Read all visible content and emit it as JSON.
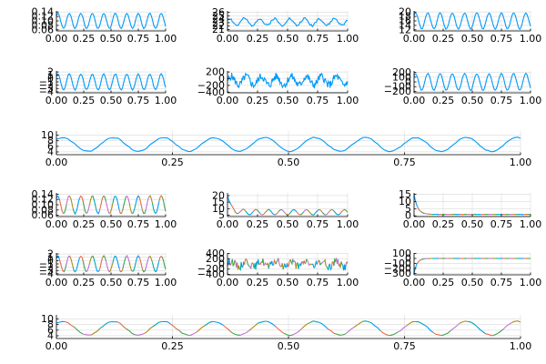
{
  "colors": {
    "series": [
      "#009AFA",
      "#E36F47",
      "#3EA44E",
      "#C371D2",
      "#AC8E18",
      "#00AAAE"
    ],
    "grid": "#d9d9d9",
    "axis": "#000000"
  },
  "chart_data": [
    {
      "type": "line",
      "row": 0,
      "col": 0,
      "span": 1,
      "xlim": [
        0,
        1
      ],
      "x_ticks": [
        "0.00",
        "0.25",
        "0.50",
        "0.75",
        "1.00"
      ],
      "ylim": [
        0.055,
        0.145
      ],
      "y_ticks": [
        "0.06",
        "0.08",
        "0.10",
        "0.12",
        "0.14"
      ],
      "grid": true,
      "legend": "none",
      "series": [
        {
          "shape": "sine",
          "base": 0.1,
          "amp": 0.034,
          "freq": 9.5,
          "noise": 0.003,
          "n": 100,
          "seed": 1
        }
      ]
    },
    {
      "type": "line",
      "row": 0,
      "col": 1,
      "span": 1,
      "xlim": [
        0,
        1
      ],
      "x_ticks": [
        "0.00",
        "0.25",
        "0.50",
        "0.75",
        "1.00"
      ],
      "ylim": [
        20.6,
        26.4
      ],
      "y_ticks": [
        "21",
        "22",
        "23",
        "24",
        "25",
        "26"
      ],
      "grid": true,
      "legend": "none",
      "series": [
        {
          "shape": "sine",
          "base": 23.2,
          "amp": 1.0,
          "freq": 8,
          "noise": 0.7,
          "n": 100,
          "seed": 2
        }
      ]
    },
    {
      "type": "line",
      "row": 0,
      "col": 2,
      "span": 1,
      "xlim": [
        0,
        1
      ],
      "x_ticks": [
        "0.00",
        "0.25",
        "0.50",
        "0.75",
        "1.00"
      ],
      "ylim": [
        11.5,
        20.5
      ],
      "y_ticks": [
        "12",
        "14",
        "16",
        "18",
        "20"
      ],
      "grid": true,
      "legend": "none",
      "series": [
        {
          "shape": "sine",
          "base": 16.0,
          "amp": 3.6,
          "freq": 9.5,
          "noise": 0.3,
          "n": 100,
          "seed": 3
        }
      ]
    },
    {
      "type": "line",
      "row": 1,
      "col": 0,
      "span": 1,
      "xlim": [
        0,
        1
      ],
      "x_ticks": [
        "0.00",
        "0.25",
        "0.50",
        "0.75",
        "1.00"
      ],
      "ylim": [
        -4.3,
        2.3
      ],
      "y_ticks": [
        "-4",
        "-3",
        "-2",
        "-1",
        "0",
        "1",
        "2"
      ],
      "grid": true,
      "legend": "none",
      "series": [
        {
          "shape": "sine",
          "base": -1.0,
          "amp": 2.4,
          "freq": 9.5,
          "noise": 0.25,
          "n": 100,
          "seed": 4
        }
      ]
    },
    {
      "type": "line",
      "row": 1,
      "col": 1,
      "span": 1,
      "xlim": [
        0,
        1
      ],
      "x_ticks": [
        "0.00",
        "0.25",
        "0.50",
        "0.75",
        "1.00"
      ],
      "ylim": [
        -420,
        230
      ],
      "y_ticks": [
        "-400",
        "-200",
        "0",
        "200"
      ],
      "grid": true,
      "legend": "none",
      "series": [
        {
          "shape": "noise",
          "base": -60,
          "amp": 130,
          "freq": 8,
          "noise": 110,
          "n": 200,
          "seed": 5
        }
      ]
    },
    {
      "type": "line",
      "row": 1,
      "col": 2,
      "span": 1,
      "xlim": [
        0,
        1
      ],
      "x_ticks": [
        "0.00",
        "0.25",
        "0.50",
        "0.75",
        "1.00"
      ],
      "ylim": [
        -230,
        230
      ],
      "y_ticks": [
        "-200",
        "-100",
        "0",
        "100",
        "200"
      ],
      "grid": true,
      "legend": "none",
      "series": [
        {
          "shape": "sine",
          "base": 0,
          "amp": 175,
          "freq": 9.5,
          "noise": 15,
          "n": 100,
          "seed": 6
        }
      ]
    },
    {
      "type": "line",
      "row": 2,
      "col": 0,
      "span": 3,
      "xlim": [
        0,
        1
      ],
      "x_ticks": [
        "0.00",
        "0.25",
        "0.50",
        "0.75",
        "1.00"
      ],
      "ylim": [
        3.0,
        11.5
      ],
      "y_ticks": [
        "4",
        "6",
        "8",
        "10"
      ],
      "grid": true,
      "legend": "none",
      "series": [
        {
          "shape": "sine",
          "base": 6.7,
          "amp": 2.5,
          "freq": 9.2,
          "noise": 0.35,
          "n": 160,
          "seed": 7
        }
      ]
    },
    {
      "type": "line",
      "row": 3,
      "col": 0,
      "span": 1,
      "xlim": [
        0,
        1
      ],
      "x_ticks": [
        "0.00",
        "0.25",
        "0.50",
        "0.75",
        "1.00"
      ],
      "ylim": [
        0.055,
        0.145
      ],
      "y_ticks": [
        "0.06",
        "0.08",
        "0.10",
        "0.12",
        "0.14"
      ],
      "grid": true,
      "legend": "none",
      "series": [
        {
          "shape": "sine",
          "base": 0.1,
          "amp": 0.034,
          "freq": 9.5,
          "noise": 0.003,
          "n": 100,
          "seed": 11,
          "segmented": true
        }
      ]
    },
    {
      "type": "line",
      "row": 3,
      "col": 1,
      "span": 1,
      "xlim": [
        0,
        1
      ],
      "x_ticks": [
        "0.00",
        "0.25",
        "0.50",
        "0.75",
        "1.00"
      ],
      "ylim": [
        4.0,
        22.0
      ],
      "y_ticks": [
        "5",
        "10",
        "15",
        "20"
      ],
      "grid": true,
      "legend": "none",
      "series": [
        {
          "shape": "decay_sine",
          "start": 20,
          "base": 7.3,
          "amp": 2.0,
          "freq": 9.5,
          "tau": 0.03,
          "noise": 0.25,
          "n": 100,
          "seed": 12,
          "segmented": true
        }
      ]
    },
    {
      "type": "line",
      "row": 3,
      "col": 2,
      "span": 1,
      "xlim": [
        0,
        1
      ],
      "x_ticks": [
        "0.00",
        "0.25",
        "0.50",
        "0.75",
        "1.00"
      ],
      "ylim": [
        -0.5,
        16.0
      ],
      "y_ticks": [
        "0",
        "5",
        "10",
        "15"
      ],
      "grid": true,
      "legend": "none",
      "series": [
        {
          "shape": "decay",
          "start": 15,
          "base": 1.0,
          "tau": 0.03,
          "noise": 0.05,
          "n": 100,
          "seed": 13,
          "segmented": true
        }
      ]
    },
    {
      "type": "line",
      "row": 4,
      "col": 0,
      "span": 1,
      "xlim": [
        0,
        1
      ],
      "x_ticks": [
        "0.00",
        "0.25",
        "0.50",
        "0.75",
        "1.00"
      ],
      "ylim": [
        -4.3,
        2.3
      ],
      "y_ticks": [
        "-4",
        "-3",
        "-2",
        "-1",
        "0",
        "1",
        "2"
      ],
      "grid": true,
      "legend": "none",
      "series": [
        {
          "shape": "sine",
          "base": -1.0,
          "amp": 2.4,
          "freq": 9.5,
          "noise": 0.25,
          "n": 100,
          "seed": 14,
          "segmented": true
        }
      ]
    },
    {
      "type": "line",
      "row": 4,
      "col": 1,
      "span": 1,
      "xlim": [
        0,
        1
      ],
      "x_ticks": [
        "0.00",
        "0.25",
        "0.50",
        "0.75",
        "1.00"
      ],
      "ylim": [
        -420,
        420
      ],
      "y_ticks": [
        "-400",
        "-200",
        "0",
        "200",
        "400"
      ],
      "grid": true,
      "legend": "none",
      "series": [
        {
          "shape": "noise",
          "base": 0,
          "amp": 110,
          "freq": 8,
          "noise": 150,
          "n": 150,
          "seed": 15,
          "segmented": true
        }
      ]
    },
    {
      "type": "line",
      "row": 4,
      "col": 2,
      "span": 1,
      "xlim": [
        0,
        1
      ],
      "x_ticks": [
        "0.00",
        "0.25",
        "0.50",
        "0.75",
        "1.00"
      ],
      "ylim": [
        -330,
        110
      ],
      "y_ticks": [
        "-300",
        "-200",
        "-100",
        "0",
        "100"
      ],
      "grid": true,
      "legend": "none",
      "series": [
        {
          "shape": "rise",
          "start": -300,
          "base": 0,
          "tau": 0.025,
          "noise": 2,
          "n": 100,
          "seed": 16,
          "segmented": true
        }
      ]
    },
    {
      "type": "line",
      "row": 5,
      "col": 0,
      "span": 3,
      "xlim": [
        0,
        1
      ],
      "x_ticks": [
        "0.00",
        "0.25",
        "0.50",
        "0.75",
        "1.00"
      ],
      "ylim": [
        3.0,
        11.5
      ],
      "y_ticks": [
        "4",
        "6",
        "8",
        "10"
      ],
      "grid": true,
      "legend": "none",
      "series": [
        {
          "shape": "sine",
          "base": 6.7,
          "amp": 2.5,
          "freq": 9.2,
          "noise": 0.35,
          "n": 160,
          "seed": 7,
          "segmented": true
        }
      ]
    }
  ]
}
